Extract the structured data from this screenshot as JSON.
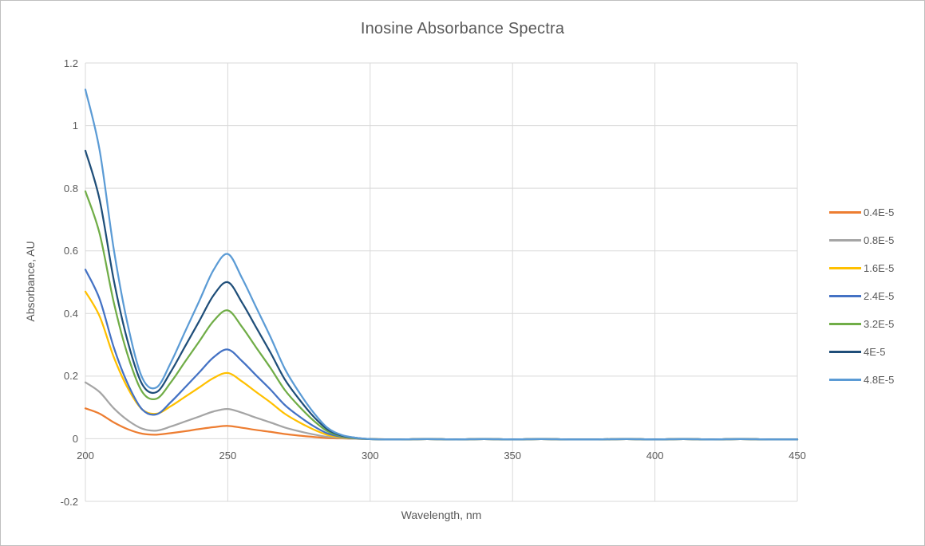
{
  "title": "Inosine Absorbance Spectra",
  "colors": {
    "text": "#595959",
    "grid": "#d9d9d9",
    "chart_border": "#bfbfbf",
    "background": "#ffffff"
  },
  "chart_data": {
    "type": "line",
    "title": "Inosine Absorbance Spectra",
    "xlabel": "Wavelength, nm",
    "ylabel": "Absorbance, AU",
    "xlim": [
      200,
      450
    ],
    "ylim": [
      -0.2,
      1.2
    ],
    "grid": true,
    "legend_position": "right",
    "x_ticks": [
      {
        "v": 200,
        "label": "200"
      },
      {
        "v": 250,
        "label": "250"
      },
      {
        "v": 300,
        "label": "300"
      },
      {
        "v": 350,
        "label": "350"
      },
      {
        "v": 400,
        "label": "400"
      },
      {
        "v": 450,
        "label": "450"
      }
    ],
    "y_ticks": [
      {
        "v": 1.2,
        "label": "1.2"
      },
      {
        "v": 1.0,
        "label": "1"
      },
      {
        "v": 0.8,
        "label": "0.8"
      },
      {
        "v": 0.6,
        "label": "0.6"
      },
      {
        "v": 0.4,
        "label": "0.4"
      },
      {
        "v": 0.2,
        "label": "0.2"
      },
      {
        "v": 0.0,
        "label": "0"
      },
      {
        "v": -0.2,
        "label": "-0.2"
      }
    ],
    "x": [
      200,
      205,
      210,
      215,
      220,
      225,
      230,
      235,
      240,
      245,
      250,
      255,
      260,
      265,
      270,
      275,
      280,
      285,
      290,
      295,
      300,
      310,
      320,
      330,
      340,
      350,
      360,
      370,
      380,
      390,
      400,
      410,
      420,
      430,
      440,
      450
    ],
    "series": [
      {
        "name": "0.4E-5",
        "color": "#ED7D31",
        "values": [
          0.097,
          0.08,
          0.052,
          0.03,
          0.016,
          0.013,
          0.018,
          0.024,
          0.031,
          0.037,
          0.041,
          0.035,
          0.028,
          0.022,
          0.015,
          0.01,
          0.006,
          0.002,
          0.001,
          0.0,
          -0.001,
          -0.002,
          -0.001,
          -0.002,
          -0.001,
          -0.002,
          -0.001,
          -0.002,
          -0.002,
          -0.001,
          -0.002,
          -0.001,
          -0.002,
          -0.001,
          -0.002,
          -0.002
        ]
      },
      {
        "name": "0.8E-5",
        "color": "#A5A5A5",
        "values": [
          0.18,
          0.149,
          0.097,
          0.058,
          0.032,
          0.026,
          0.039,
          0.055,
          0.071,
          0.087,
          0.095,
          0.083,
          0.067,
          0.052,
          0.036,
          0.024,
          0.014,
          0.006,
          0.002,
          0.0,
          -0.001,
          -0.002,
          -0.001,
          -0.002,
          -0.001,
          -0.002,
          -0.001,
          -0.002,
          -0.002,
          -0.001,
          -0.002,
          -0.001,
          -0.002,
          -0.001,
          -0.002,
          -0.002
        ]
      },
      {
        "name": "1.6E-5",
        "color": "#FFC000",
        "values": [
          0.47,
          0.391,
          0.26,
          0.16,
          0.093,
          0.08,
          0.104,
          0.134,
          0.164,
          0.194,
          0.21,
          0.183,
          0.149,
          0.116,
          0.08,
          0.053,
          0.03,
          0.012,
          0.004,
          0.001,
          -0.001,
          -0.002,
          -0.001,
          -0.002,
          -0.001,
          -0.002,
          -0.001,
          -0.002,
          -0.002,
          -0.001,
          -0.002,
          -0.001,
          -0.002,
          -0.001,
          -0.002,
          -0.002
        ]
      },
      {
        "name": "2.4E-5",
        "color": "#4472C4",
        "values": [
          0.54,
          0.446,
          0.291,
          0.173,
          0.093,
          0.078,
          0.117,
          0.164,
          0.212,
          0.26,
          0.285,
          0.248,
          0.202,
          0.157,
          0.108,
          0.072,
          0.041,
          0.017,
          0.006,
          0.001,
          -0.001,
          -0.002,
          -0.001,
          -0.002,
          -0.001,
          -0.002,
          -0.001,
          -0.002,
          -0.002,
          -0.001,
          -0.002,
          -0.001,
          -0.002,
          -0.001,
          -0.002,
          -0.002
        ]
      },
      {
        "name": "3.2E-5",
        "color": "#70AD47",
        "values": [
          0.79,
          0.655,
          0.434,
          0.263,
          0.149,
          0.128,
          0.18,
          0.246,
          0.311,
          0.376,
          0.41,
          0.357,
          0.291,
          0.226,
          0.156,
          0.104,
          0.059,
          0.024,
          0.008,
          0.002,
          -0.001,
          -0.002,
          -0.001,
          -0.002,
          -0.001,
          -0.002,
          -0.001,
          -0.002,
          -0.002,
          -0.001,
          -0.002,
          -0.001,
          -0.002,
          -0.001,
          -0.002,
          -0.002
        ]
      },
      {
        "name": "4E-5",
        "color": "#1F4E79",
        "values": [
          0.92,
          0.763,
          0.505,
          0.306,
          0.173,
          0.149,
          0.214,
          0.295,
          0.376,
          0.458,
          0.5,
          0.435,
          0.355,
          0.275,
          0.19,
          0.127,
          0.072,
          0.03,
          0.01,
          0.003,
          -0.001,
          -0.002,
          -0.001,
          -0.002,
          -0.001,
          -0.002,
          -0.001,
          -0.002,
          -0.002,
          -0.001,
          -0.002,
          -0.001,
          -0.002,
          -0.001,
          -0.002,
          -0.002
        ]
      },
      {
        "name": "4.8E-5",
        "color": "#5B9BD5",
        "values": [
          1.115,
          0.921,
          0.603,
          0.359,
          0.194,
          0.164,
          0.243,
          0.342,
          0.44,
          0.539,
          0.59,
          0.513,
          0.419,
          0.325,
          0.224,
          0.149,
          0.085,
          0.035,
          0.012,
          0.003,
          -0.001,
          -0.002,
          -0.001,
          -0.002,
          -0.001,
          -0.002,
          -0.001,
          -0.002,
          -0.002,
          -0.001,
          -0.002,
          -0.001,
          -0.002,
          -0.001,
          -0.002,
          -0.002
        ]
      }
    ]
  }
}
